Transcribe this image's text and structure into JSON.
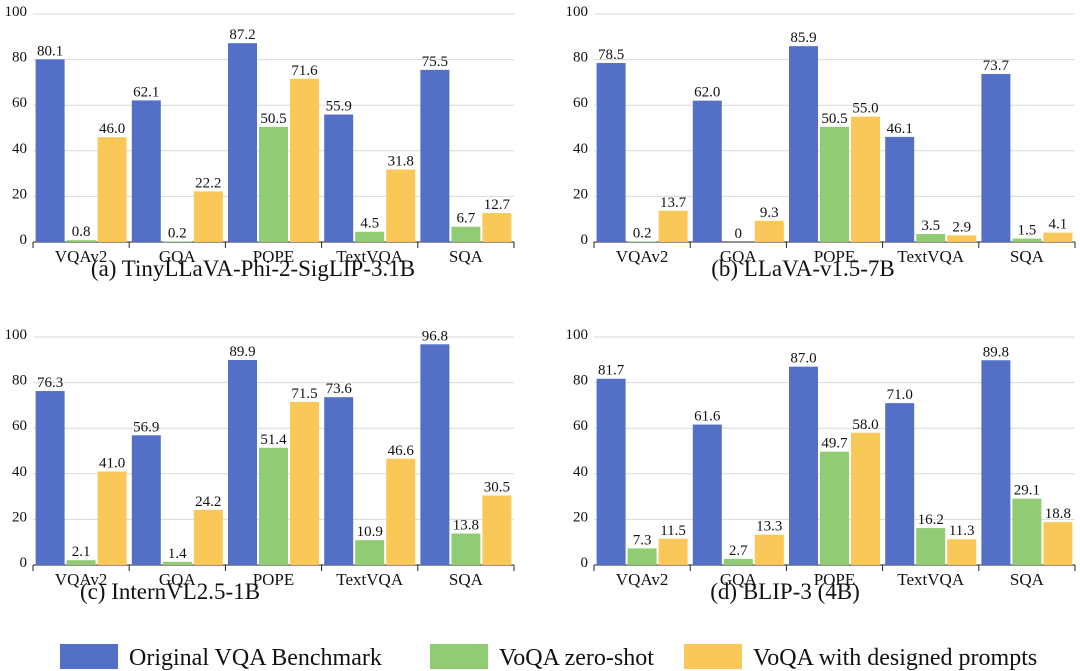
{
  "chart_data": [
    {
      "type": "bar",
      "title": "(a) TinyLLaVA-Phi-2-SigLIP-3.1B",
      "categories": [
        "VQAv2",
        "GQA",
        "POPE",
        "TextVQA",
        "SQA"
      ],
      "ylim": [
        0,
        100
      ],
      "yticks": [
        0,
        20,
        40,
        60,
        80,
        100
      ],
      "series": [
        {
          "name": "Original VQA Benchmark",
          "values": [
            80.1,
            62.1,
            87.2,
            55.9,
            75.5
          ],
          "labels": [
            "80.1",
            "62.1",
            "87.2",
            "55.9",
            "75.5"
          ]
        },
        {
          "name": "VoQA zero-shot",
          "values": [
            0.8,
            0.2,
            50.5,
            4.5,
            6.7
          ],
          "labels": [
            "0.8",
            "0.2",
            "50.5",
            "4.5",
            "6.7"
          ]
        },
        {
          "name": "VoQA with designed prompts",
          "values": [
            46.0,
            22.2,
            71.6,
            31.8,
            12.7
          ],
          "labels": [
            "46.0",
            "22.2",
            "71.6",
            "31.8",
            "12.7"
          ]
        }
      ]
    },
    {
      "type": "bar",
      "title": "(b) LLaVA-v1.5-7B",
      "categories": [
        "VQAv2",
        "GQA",
        "POPE",
        "TextVQA",
        "SQA"
      ],
      "ylim": [
        0,
        100
      ],
      "yticks": [
        0,
        20,
        40,
        60,
        80,
        100
      ],
      "series": [
        {
          "name": "Original VQA Benchmark",
          "values": [
            78.5,
            62.0,
            85.9,
            46.1,
            73.7
          ],
          "labels": [
            "78.5",
            "62.0",
            "85.9",
            "46.1",
            "73.7"
          ]
        },
        {
          "name": "VoQA zero-shot",
          "values": [
            0.2,
            0,
            50.5,
            3.5,
            1.5
          ],
          "labels": [
            "0.2",
            "0",
            "50.5",
            "3.5",
            "1.5"
          ]
        },
        {
          "name": "VoQA with designed prompts",
          "values": [
            13.7,
            9.3,
            55.0,
            2.9,
            4.1
          ],
          "labels": [
            "13.7",
            "9.3",
            "55.0",
            "2.9",
            "4.1"
          ]
        }
      ]
    },
    {
      "type": "bar",
      "title": "(c) InternVL2.5-1B",
      "categories": [
        "VQAv2",
        "GQA",
        "POPE",
        "TextVQA",
        "SQA"
      ],
      "ylim": [
        0,
        100
      ],
      "yticks": [
        0,
        20,
        40,
        60,
        80,
        100
      ],
      "series": [
        {
          "name": "Original VQA Benchmark",
          "values": [
            76.3,
            56.9,
            89.9,
            73.6,
            96.8
          ],
          "labels": [
            "76.3",
            "56.9",
            "89.9",
            "73.6",
            "96.8"
          ]
        },
        {
          "name": "VoQA zero-shot",
          "values": [
            2.1,
            1.4,
            51.4,
            10.9,
            13.8
          ],
          "labels": [
            "2.1",
            "1.4",
            "51.4",
            "10.9",
            "13.8"
          ]
        },
        {
          "name": "VoQA with designed prompts",
          "values": [
            41.0,
            24.2,
            71.5,
            46.6,
            30.5
          ],
          "labels": [
            "41.0",
            "24.2",
            "71.5",
            "46.6",
            "30.5"
          ]
        }
      ]
    },
    {
      "type": "bar",
      "title": "(d) BLIP-3 (4B)",
      "categories": [
        "VQAv2",
        "GQA",
        "POPE",
        "TextVQA",
        "SQA"
      ],
      "ylim": [
        0,
        100
      ],
      "yticks": [
        0,
        20,
        40,
        60,
        80,
        100
      ],
      "series": [
        {
          "name": "Original VQA Benchmark",
          "values": [
            81.7,
            61.6,
            87.0,
            71.0,
            89.8
          ],
          "labels": [
            "81.7",
            "61.6",
            "87.0",
            "71.0",
            "89.8"
          ]
        },
        {
          "name": "VoQA zero-shot",
          "values": [
            7.3,
            2.7,
            49.7,
            16.2,
            29.1
          ],
          "labels": [
            "7.3",
            "2.7",
            "49.7",
            "16.2",
            "29.1"
          ]
        },
        {
          "name": "VoQA with designed prompts",
          "values": [
            11.5,
            13.3,
            58.0,
            11.3,
            18.8
          ],
          "labels": [
            "11.5",
            "13.3",
            "58.0",
            "11.3",
            "18.8"
          ]
        }
      ]
    }
  ],
  "legend": {
    "items": [
      {
        "label": "Original VQA Benchmark",
        "color": "#5470c6"
      },
      {
        "label": "VoQA zero-shot",
        "color": "#91cc75"
      },
      {
        "label": "VoQA with designed prompts",
        "color": "#fac858"
      }
    ]
  },
  "colors": [
    "#5470c6",
    "#91cc75",
    "#fac858"
  ]
}
